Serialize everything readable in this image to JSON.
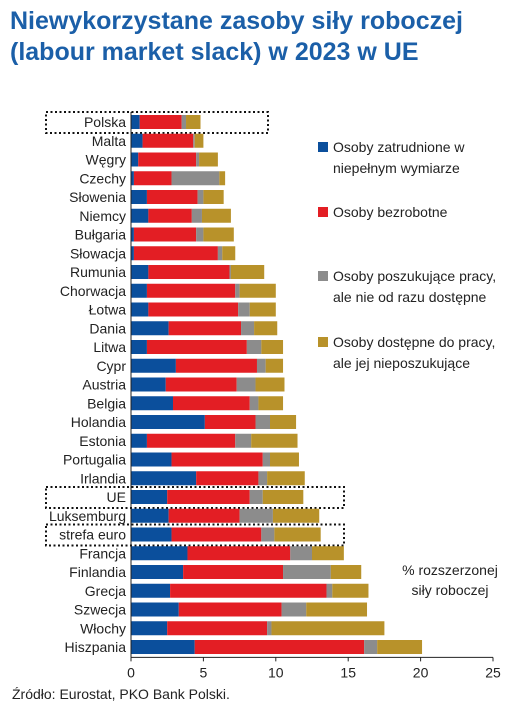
{
  "title_line1": "Niewykorzystane zasoby siły roboczej",
  "title_line2": "(labour market slack) w 2023 w UE",
  "source": "Źródło: Eurostat, PKO Bank Polski.",
  "chart_data": {
    "type": "bar",
    "orientation": "horizontal",
    "stacked": true,
    "categories": [
      "Polska",
      "Malta",
      "Węgry",
      "Czechy",
      "Słowenia",
      "Niemcy",
      "Bułgaria",
      "Słowacja",
      "Rumunia",
      "Chorwacja",
      "Łotwa",
      "Dania",
      "Litwa",
      "Cypr",
      "Austria",
      "Belgia",
      "Holandia",
      "Estonia",
      "Portugalia",
      "Irlandia",
      "UE",
      "Luksemburg",
      "strefa euro",
      "Francja",
      "Finlandia",
      "Grecja",
      "Szwecja",
      "Włochy",
      "Hiszpania"
    ],
    "highlighted": [
      "Polska",
      "UE",
      "strefa euro"
    ],
    "series": [
      {
        "name": "Osoby zatrudnione w niepełnym wymiarze",
        "color": "#0b4f9c",
        "values": [
          0.6,
          0.8,
          0.5,
          0.2,
          1.1,
          1.2,
          0.2,
          0.2,
          1.2,
          1.1,
          1.2,
          2.6,
          1.1,
          3.1,
          2.4,
          2.9,
          5.1,
          1.1,
          2.8,
          4.5,
          2.5,
          2.6,
          2.8,
          3.9,
          3.6,
          2.7,
          3.3,
          2.5,
          4.4
        ]
      },
      {
        "name": "Osoby bezrobotne",
        "color": "#e31e24",
        "values": [
          2.9,
          3.5,
          4.0,
          2.6,
          3.5,
          3.0,
          4.3,
          5.8,
          5.6,
          6.1,
          6.2,
          5.0,
          6.9,
          5.6,
          4.9,
          5.3,
          3.5,
          6.1,
          6.3,
          4.3,
          5.7,
          4.9,
          6.2,
          7.1,
          6.9,
          10.8,
          7.1,
          6.9,
          11.7
        ]
      },
      {
        "name": "Osoby poszukujące pracy, ale nie od razu dostępne",
        "color": "#8c8c8c",
        "values": [
          0.3,
          0.1,
          0.2,
          3.3,
          0.4,
          0.7,
          0.5,
          0.3,
          0.1,
          0.3,
          0.8,
          0.9,
          1.0,
          0.6,
          1.3,
          0.6,
          1.0,
          1.1,
          0.5,
          0.6,
          0.9,
          2.3,
          0.9,
          1.5,
          3.3,
          0.4,
          1.7,
          0.3,
          0.9
        ]
      },
      {
        "name": "Osoby dostępne do pracy, ale jej nieposzukujące",
        "color": "#b8922a",
        "values": [
          1.0,
          0.6,
          1.3,
          0.4,
          1.4,
          2.0,
          2.1,
          0.9,
          2.3,
          2.5,
          1.8,
          1.6,
          1.5,
          1.2,
          2.0,
          1.7,
          1.8,
          3.2,
          2.0,
          2.6,
          2.8,
          3.2,
          3.2,
          2.2,
          2.1,
          2.5,
          4.2,
          7.8,
          3.1
        ]
      }
    ],
    "xlim": [
      0,
      25
    ],
    "xticks": [
      0,
      5,
      10,
      15,
      20,
      25
    ],
    "xlabel_note": "% rozszerzonej siły roboczej",
    "legend_position": "right",
    "grid": false
  }
}
